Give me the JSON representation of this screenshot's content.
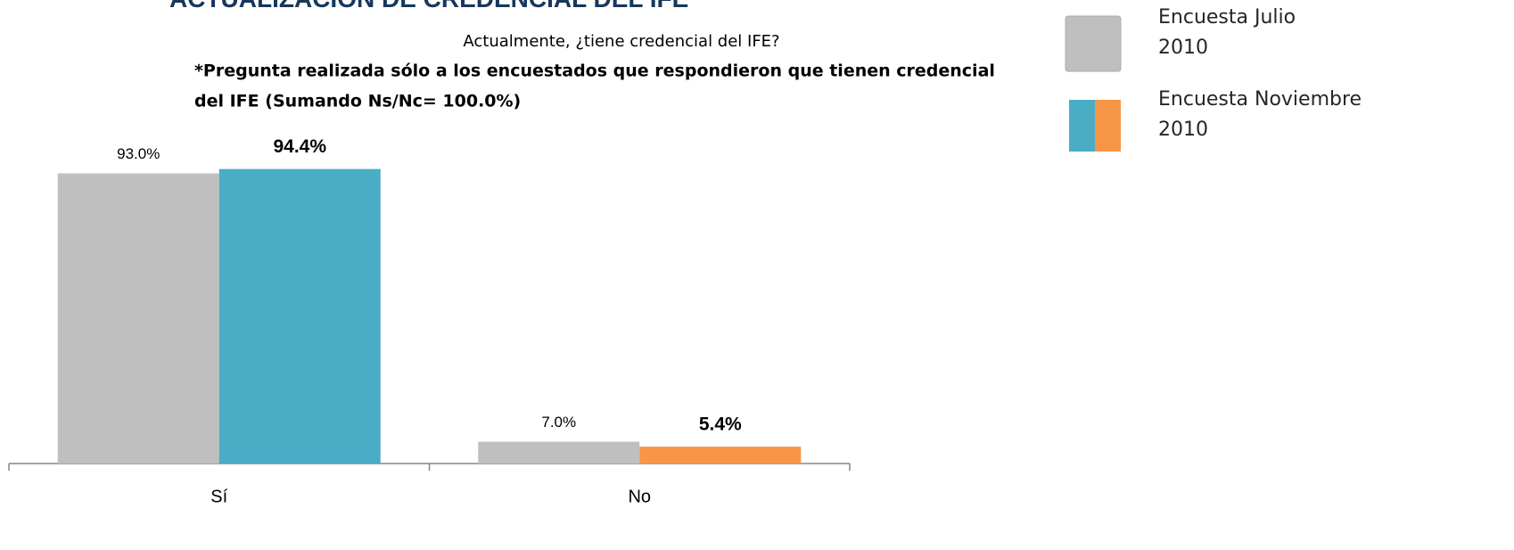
{
  "chart_data": {
    "type": "bar",
    "title": "ACTUALIZACIÓN DE CREDENCIAL DEL IFE",
    "subtitle": "Actualmente, ¿tiene credencial del IFE?",
    "note": [
      "*Pregunta realizada sólo a los encuestados que respondieron que tienen credencial",
      "del IFE  (Sumando Ns/Nc= 100.0%)"
    ],
    "categories": [
      "Sí",
      "No"
    ],
    "series": [
      {
        "name": "Encuesta Julio 2010",
        "color": "#bfbfbf",
        "values": [
          93.0,
          7.0
        ],
        "value_labels": [
          "93.0%",
          "7.0%"
        ]
      },
      {
        "name": "Encuesta Noviembre 2010",
        "colors": [
          "#4bacc6",
          "#f79646"
        ],
        "values": [
          94.4,
          5.4
        ],
        "value_labels": [
          "94.4%",
          "5.4%"
        ]
      }
    ],
    "ylim": [
      0,
      100
    ]
  }
}
